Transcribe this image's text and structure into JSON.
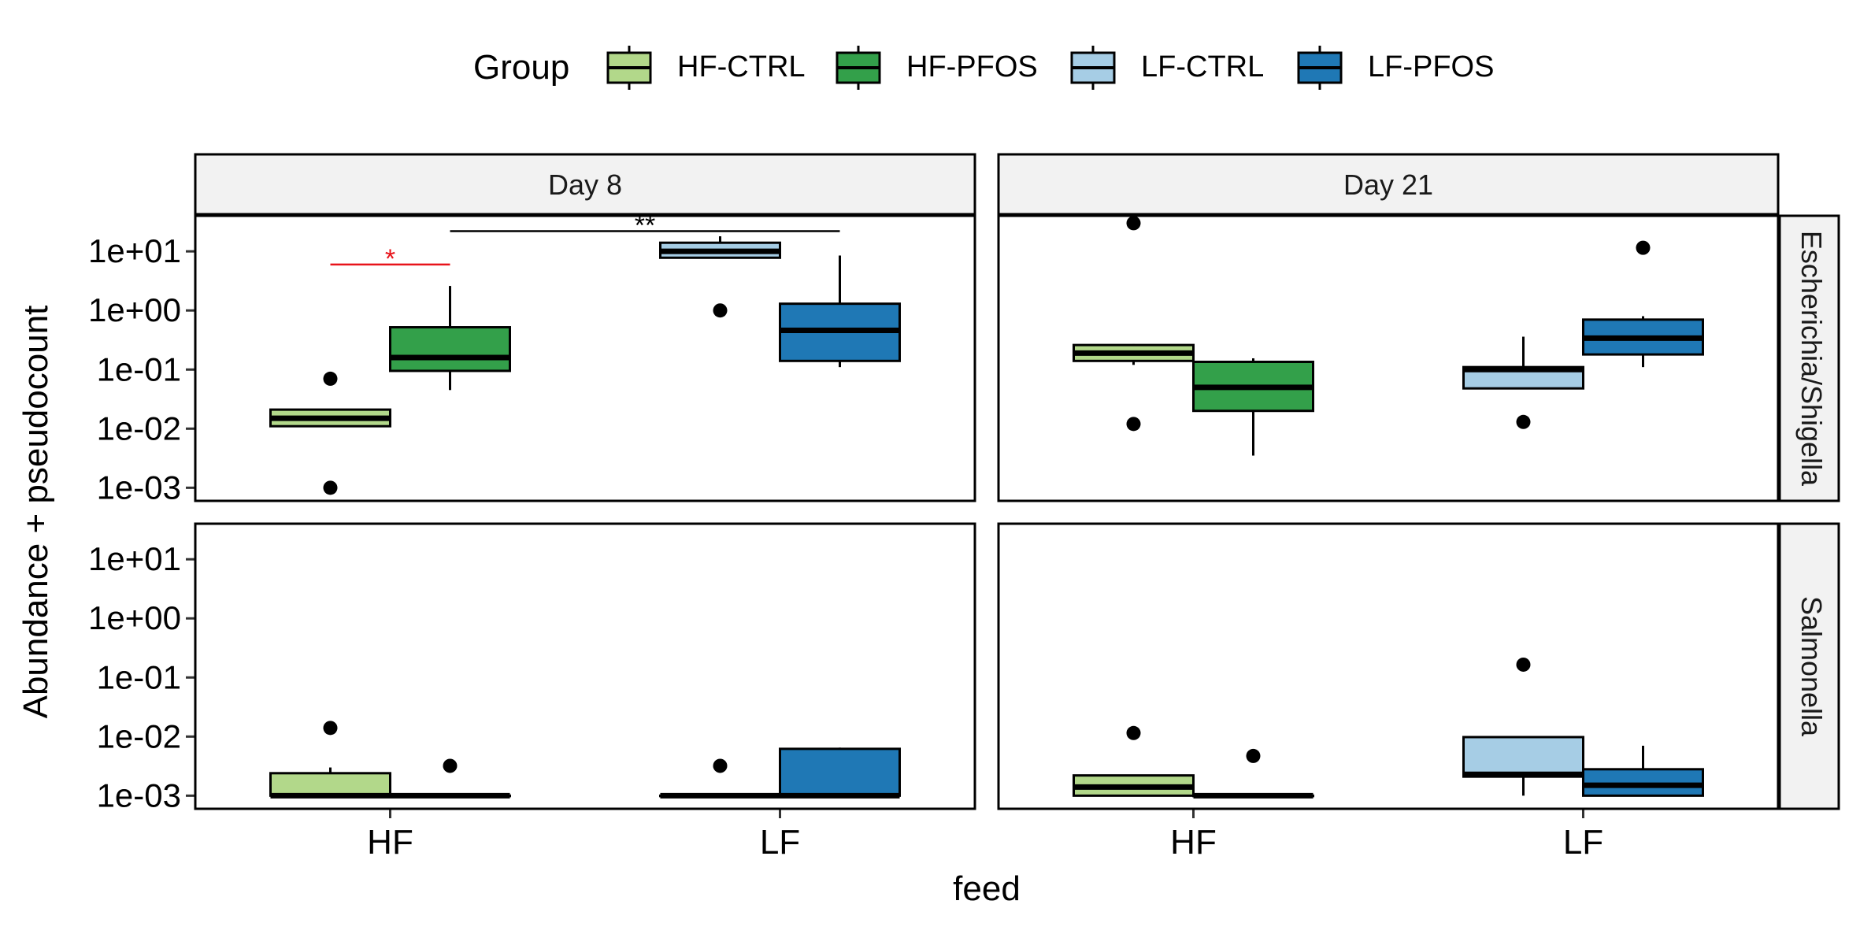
{
  "chart_data": {
    "type": "boxplot",
    "legend": {
      "title": "Group",
      "placement": "top",
      "entries": [
        {
          "name": "HF-CTRL",
          "color": "#b2d88a"
        },
        {
          "name": "HF-PFOS",
          "color": "#33a04a"
        },
        {
          "name": "LF-CTRL",
          "color": "#a6cde5"
        },
        {
          "name": "LF-PFOS",
          "color": "#1f78b5"
        }
      ]
    },
    "xlabel": "feed",
    "ylabel": "Abundance + pseudocount",
    "y_scale": "log10",
    "ylim": [
      0.0006,
      40
    ],
    "y_ticks": [
      0.001,
      0.01,
      0.1,
      1,
      10
    ],
    "y_tick_labels": [
      "1e-03",
      "1e-02",
      "1e-01",
      "1e+00",
      "1e+01"
    ],
    "x_categories": [
      "HF",
      "LF"
    ],
    "column_facets": [
      "Day 8",
      "Day 21"
    ],
    "row_facets": [
      "Escherichia/Shigella",
      "Salmonella"
    ],
    "panels": [
      {
        "column": "Day 8",
        "row": "Escherichia/Shigella",
        "boxes": [
          {
            "group": "HF-CTRL",
            "feed": "HF",
            "q1": 0.011,
            "median": 0.015,
            "q3": 0.021,
            "whisker_low": 0.011,
            "whisker_high": 0.021,
            "outliers": [
              0.07,
              0.001
            ]
          },
          {
            "group": "HF-PFOS",
            "feed": "HF",
            "q1": 0.095,
            "median": 0.16,
            "q3": 0.52,
            "whisker_low": 0.045,
            "whisker_high": 2.6,
            "outliers": []
          },
          {
            "group": "LF-CTRL",
            "feed": "LF",
            "q1": 7.8,
            "median": 10,
            "q3": 14,
            "whisker_low": 7.8,
            "whisker_high": 18,
            "outliers": [
              1.0
            ]
          },
          {
            "group": "LF-PFOS",
            "feed": "LF",
            "q1": 0.14,
            "median": 0.46,
            "q3": 1.3,
            "whisker_low": 0.11,
            "whisker_high": 8.5,
            "outliers": []
          }
        ],
        "significance": [
          {
            "from": "HF-CTRL",
            "to": "HF-PFOS",
            "label": "*",
            "color": "#e8131a",
            "y": 6
          },
          {
            "from": "HF-PFOS",
            "to": "LF-PFOS",
            "label": "**",
            "color": "#000000",
            "y": 22
          }
        ]
      },
      {
        "column": "Day 21",
        "row": "Escherichia/Shigella",
        "boxes": [
          {
            "group": "HF-CTRL",
            "feed": "HF",
            "q1": 0.14,
            "median": 0.19,
            "q3": 0.26,
            "whisker_low": 0.12,
            "whisker_high": 0.27,
            "outliers": [
              30,
              0.012
            ]
          },
          {
            "group": "HF-PFOS",
            "feed": "HF",
            "q1": 0.02,
            "median": 0.05,
            "q3": 0.135,
            "whisker_low": 0.0035,
            "whisker_high": 0.155,
            "outliers": []
          },
          {
            "group": "LF-CTRL",
            "feed": "LF",
            "q1": 0.048,
            "median": 0.1,
            "q3": 0.11,
            "whisker_low": 0.048,
            "whisker_high": 0.36,
            "outliers": [
              0.013
            ]
          },
          {
            "group": "LF-PFOS",
            "feed": "LF",
            "q1": 0.18,
            "median": 0.34,
            "q3": 0.7,
            "whisker_low": 0.11,
            "whisker_high": 0.8,
            "outliers": [
              11.5
            ]
          }
        ],
        "significance": []
      },
      {
        "column": "Day 8",
        "row": "Salmonella",
        "boxes": [
          {
            "group": "HF-CTRL",
            "feed": "HF",
            "q1": 0.001,
            "median": 0.001,
            "q3": 0.0024,
            "whisker_low": 0.001,
            "whisker_high": 0.003,
            "outliers": [
              0.014
            ]
          },
          {
            "group": "HF-PFOS",
            "feed": "HF",
            "q1": 0.001,
            "median": 0.001,
            "q3": 0.001,
            "whisker_low": 0.001,
            "whisker_high": 0.001,
            "outliers": [
              0.0032
            ]
          },
          {
            "group": "LF-CTRL",
            "feed": "LF",
            "q1": 0.001,
            "median": 0.001,
            "q3": 0.001,
            "whisker_low": 0.001,
            "whisker_high": 0.001,
            "outliers": [
              0.0032
            ]
          },
          {
            "group": "LF-PFOS",
            "feed": "LF",
            "q1": 0.001,
            "median": 0.001,
            "q3": 0.0062,
            "whisker_low": 0.001,
            "whisker_high": 0.0065,
            "outliers": []
          }
        ],
        "significance": []
      },
      {
        "column": "Day 21",
        "row": "Salmonella",
        "boxes": [
          {
            "group": "HF-CTRL",
            "feed": "HF",
            "q1": 0.001,
            "median": 0.0014,
            "q3": 0.0022,
            "whisker_low": 0.001,
            "whisker_high": 0.0022,
            "outliers": [
              0.0115
            ]
          },
          {
            "group": "HF-PFOS",
            "feed": "HF",
            "q1": 0.001,
            "median": 0.001,
            "q3": 0.001,
            "whisker_low": 0.001,
            "whisker_high": 0.001,
            "outliers": [
              0.0047
            ]
          },
          {
            "group": "LF-CTRL",
            "feed": "LF",
            "q1": 0.0021,
            "median": 0.0023,
            "q3": 0.0098,
            "whisker_low": 0.001,
            "whisker_high": 0.0098,
            "outliers": [
              0.165
            ]
          },
          {
            "group": "LF-PFOS",
            "feed": "LF",
            "q1": 0.001,
            "median": 0.0015,
            "q3": 0.0028,
            "whisker_low": 0.001,
            "whisker_high": 0.007,
            "outliers": []
          }
        ],
        "significance": []
      }
    ]
  }
}
